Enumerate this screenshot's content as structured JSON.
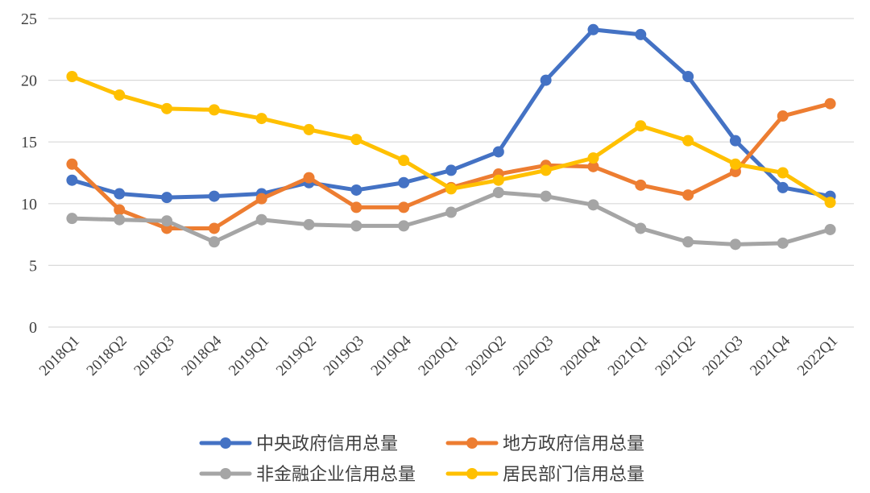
{
  "chart_data": {
    "type": "line",
    "title": "",
    "xlabel": "",
    "ylabel": "",
    "ylim": [
      0,
      25
    ],
    "yticks": [
      0,
      5,
      10,
      15,
      20,
      25
    ],
    "grid": true,
    "legend_position": "bottom",
    "categories": [
      "2018Q1",
      "2018Q2",
      "2018Q3",
      "2018Q4",
      "2019Q1",
      "2019Q2",
      "2019Q3",
      "2019Q4",
      "2020Q1",
      "2020Q2",
      "2020Q3",
      "2020Q4",
      "2021Q1",
      "2021Q2",
      "2021Q3",
      "2021Q4",
      "2022Q1"
    ],
    "series": [
      {
        "name": "中央政府信用总量",
        "color": "#4472C4",
        "values": [
          11.9,
          10.8,
          10.5,
          10.6,
          10.8,
          11.7,
          11.1,
          11.7,
          12.7,
          14.2,
          20.0,
          24.1,
          23.7,
          20.3,
          15.1,
          11.3,
          10.6
        ]
      },
      {
        "name": "地方政府信用总量",
        "color": "#ED7D31",
        "values": [
          13.2,
          9.5,
          8.0,
          8.0,
          10.4,
          12.1,
          9.7,
          9.7,
          11.3,
          12.4,
          13.1,
          13.0,
          11.5,
          10.7,
          12.6,
          17.1,
          18.1
        ]
      },
      {
        "name": "非金融企业信用总量",
        "color": "#A5A5A5",
        "values": [
          8.8,
          8.7,
          8.6,
          6.9,
          8.7,
          8.3,
          8.2,
          8.2,
          9.3,
          10.9,
          10.6,
          9.9,
          8.0,
          6.9,
          6.7,
          6.8,
          7.9
        ]
      },
      {
        "name": "居民部门信用总量",
        "color": "#FFC000",
        "values": [
          20.3,
          18.8,
          17.7,
          17.6,
          16.9,
          16.0,
          15.2,
          13.5,
          11.2,
          11.9,
          12.7,
          13.7,
          16.3,
          15.1,
          13.2,
          12.5,
          10.1
        ]
      }
    ]
  }
}
